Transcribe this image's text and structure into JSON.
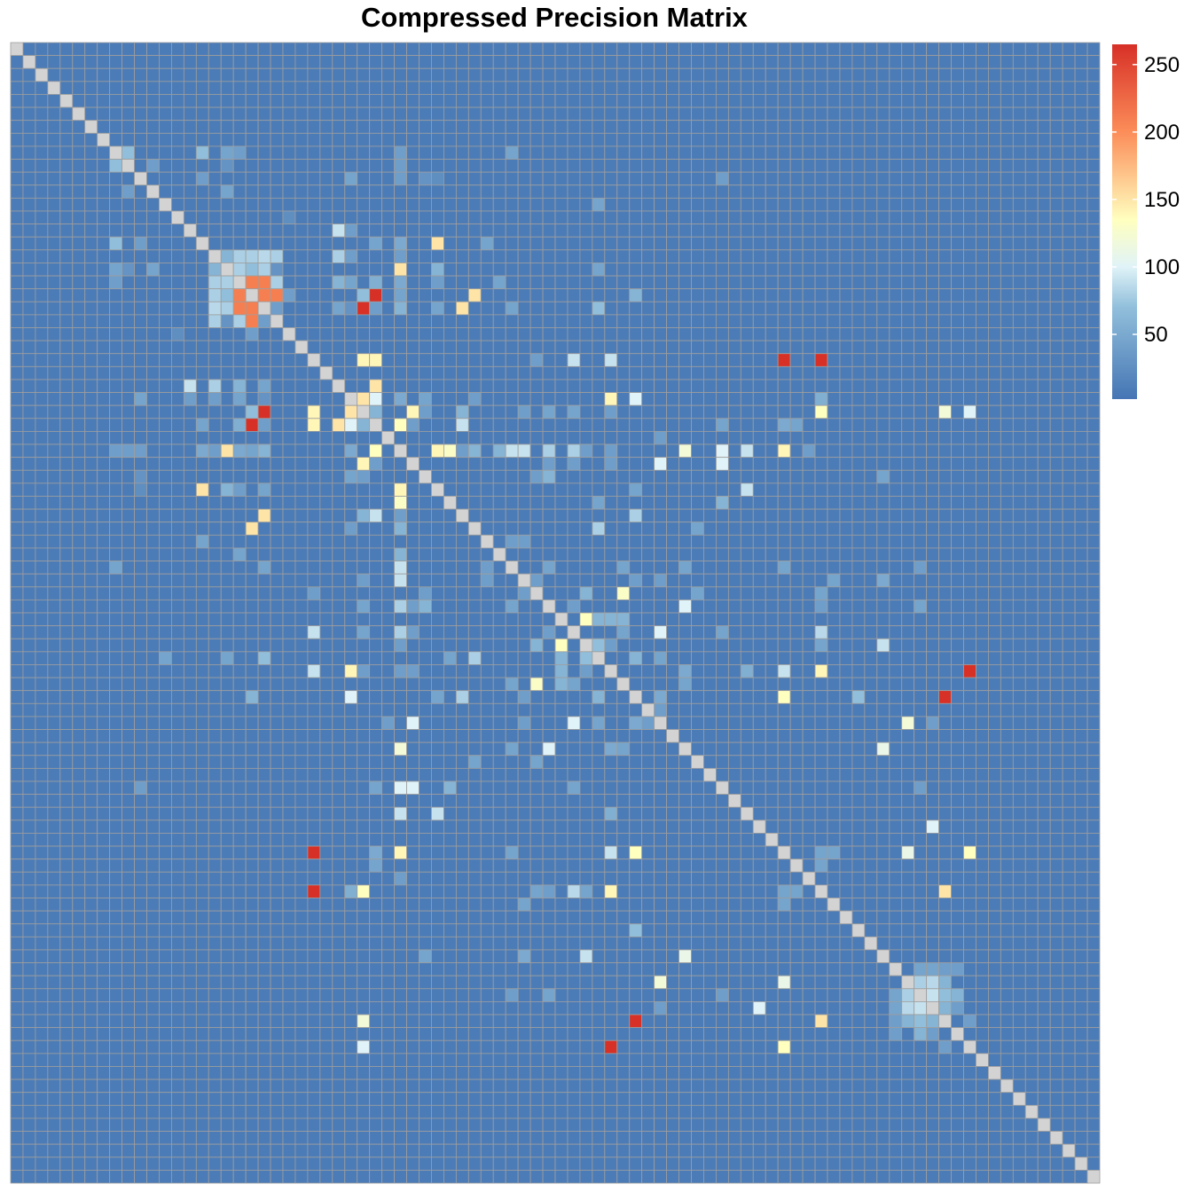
{
  "chart_data": {
    "type": "heatmap",
    "title": "Compressed Precision Matrix",
    "n": 88,
    "diagonal_color": "#D3D3D3",
    "grid_color": "#9E9E9E",
    "colorscale": [
      {
        "v": 2,
        "color": "#4575B4"
      },
      {
        "v": 70,
        "color": "#91BFDB"
      },
      {
        "v": 100,
        "color": "#E0F3F8"
      },
      {
        "v": 135,
        "color": "#FFFFBF"
      },
      {
        "v": 200,
        "color": "#FC8D59"
      },
      {
        "v": 265,
        "color": "#D73027"
      }
    ],
    "scale_range": [
      2,
      265
    ],
    "legend": {
      "ticks": [
        50,
        100,
        150,
        200,
        250
      ],
      "labels": [
        "50",
        "100",
        "150",
        "200",
        "250"
      ]
    },
    "background_value": 8,
    "cells": [
      [
        8,
        9,
        70
      ],
      [
        8,
        17,
        45
      ],
      [
        9,
        11,
        40
      ],
      [
        11,
        17,
        45
      ],
      [
        9,
        17,
        30
      ],
      [
        10,
        33,
        30
      ],
      [
        10,
        34,
        25
      ],
      [
        13,
        22,
        25
      ],
      [
        15,
        8,
        70
      ],
      [
        15,
        10,
        40
      ],
      [
        15,
        29,
        45
      ],
      [
        15,
        31,
        50
      ],
      [
        15,
        34,
        150
      ],
      [
        15,
        38,
        45
      ],
      [
        16,
        17,
        60
      ],
      [
        16,
        18,
        80
      ],
      [
        16,
        19,
        80
      ],
      [
        16,
        20,
        85
      ],
      [
        16,
        21,
        80
      ],
      [
        17,
        17,
        80
      ],
      [
        17,
        18,
        210
      ],
      [
        17,
        19,
        210
      ],
      [
        17,
        20,
        210
      ],
      [
        17,
        21,
        210
      ],
      [
        18,
        17,
        80
      ],
      [
        18,
        18,
        210
      ],
      [
        18,
        19,
        210
      ],
      [
        18,
        20,
        210
      ],
      [
        18,
        21,
        80
      ],
      [
        19,
        17,
        100
      ],
      [
        19,
        18,
        210
      ],
      [
        19,
        19,
        210
      ],
      [
        19,
        20,
        210
      ],
      [
        19,
        21,
        210
      ],
      [
        20,
        17,
        80
      ],
      [
        20,
        18,
        210
      ],
      [
        20,
        19,
        210
      ],
      [
        20,
        20,
        210
      ],
      [
        20,
        21,
        210
      ],
      [
        17,
        19,
        70
      ],
      [
        18,
        8,
        40
      ],
      [
        18,
        29,
        55
      ],
      [
        18,
        31,
        50
      ],
      [
        18,
        34,
        40
      ],
      [
        18,
        39,
        45
      ],
      [
        19,
        22,
        40
      ],
      [
        19,
        28,
        70
      ],
      [
        19,
        29,
        265
      ],
      [
        19,
        31,
        45
      ],
      [
        19,
        37,
        150
      ],
      [
        19,
        50,
        60
      ],
      [
        20,
        27,
        30
      ],
      [
        21,
        17,
        30
      ],
      [
        21,
        20,
        40
      ],
      [
        24,
        29,
        140
      ],
      [
        24,
        48,
        90
      ],
      [
        24,
        65,
        265
      ],
      [
        26,
        14,
        90
      ],
      [
        26,
        16,
        80
      ],
      [
        26,
        18,
        60
      ],
      [
        26,
        20,
        45
      ],
      [
        26,
        29,
        150
      ],
      [
        27,
        10,
        45
      ],
      [
        27,
        14,
        40
      ],
      [
        27,
        16,
        40
      ],
      [
        27,
        18,
        45
      ],
      [
        27,
        28,
        70
      ],
      [
        27,
        29,
        100
      ],
      [
        27,
        31,
        50
      ],
      [
        27,
        33,
        45
      ],
      [
        27,
        37,
        40
      ],
      [
        27,
        50,
        100
      ],
      [
        27,
        65,
        55
      ],
      [
        28,
        20,
        265
      ],
      [
        28,
        24,
        140
      ],
      [
        28,
        27,
        150
      ],
      [
        28,
        28,
        100
      ],
      [
        28,
        29,
        60
      ],
      [
        28,
        32,
        140
      ],
      [
        28,
        33,
        40
      ],
      [
        28,
        36,
        50
      ],
      [
        28,
        41,
        40
      ],
      [
        28,
        45,
        45
      ],
      [
        28,
        48,
        40
      ],
      [
        28,
        65,
        135
      ],
      [
        28,
        77,
        100
      ],
      [
        29,
        20,
        40
      ],
      [
        29,
        29,
        50
      ],
      [
        31,
        8,
        40
      ],
      [
        31,
        9,
        40
      ],
      [
        31,
        10,
        40
      ],
      [
        31,
        16,
        40
      ],
      [
        31,
        17,
        150
      ],
      [
        31,
        20,
        60
      ],
      [
        31,
        29,
        135
      ],
      [
        31,
        35,
        130
      ],
      [
        31,
        37,
        60
      ],
      [
        31,
        40,
        40
      ],
      [
        31,
        41,
        90
      ],
      [
        31,
        45,
        80
      ],
      [
        31,
        46,
        40
      ],
      [
        31,
        54,
        120
      ],
      [
        31,
        59,
        90
      ],
      [
        31,
        64,
        40
      ],
      [
        32,
        29,
        40
      ],
      [
        32,
        45,
        40
      ],
      [
        32,
        48,
        40
      ],
      [
        34,
        17,
        60
      ],
      [
        34,
        20,
        45
      ],
      [
        34,
        31,
        140
      ],
      [
        34,
        50,
        45
      ],
      [
        34,
        59,
        90
      ],
      [
        36,
        20,
        150
      ],
      [
        36,
        28,
        60
      ],
      [
        36,
        29,
        90
      ],
      [
        36,
        31,
        40
      ],
      [
        36,
        50,
        80
      ],
      [
        38,
        40,
        40
      ],
      [
        38,
        41,
        40
      ],
      [
        39,
        31,
        60
      ],
      [
        40,
        8,
        45
      ],
      [
        40,
        20,
        45
      ],
      [
        40,
        31,
        90
      ],
      [
        40,
        54,
        45
      ],
      [
        40,
        62,
        45
      ],
      [
        40,
        73,
        40
      ],
      [
        42,
        24,
        40
      ],
      [
        42,
        33,
        40
      ],
      [
        42,
        41,
        40
      ],
      [
        42,
        46,
        60
      ],
      [
        42,
        49,
        130
      ],
      [
        42,
        55,
        45
      ],
      [
        42,
        65,
        45
      ],
      [
        43,
        28,
        45
      ],
      [
        43,
        31,
        80
      ],
      [
        43,
        32,
        40
      ],
      [
        43,
        33,
        60
      ],
      [
        43,
        40,
        45
      ],
      [
        43,
        45,
        40
      ],
      [
        43,
        54,
        100
      ],
      [
        43,
        65,
        40
      ],
      [
        43,
        73,
        45
      ],
      [
        44,
        47,
        60
      ],
      [
        44,
        48,
        60
      ],
      [
        44,
        49,
        60
      ],
      [
        45,
        24,
        90
      ],
      [
        45,
        28,
        45
      ],
      [
        45,
        49,
        45
      ],
      [
        45,
        65,
        85
      ],
      [
        46,
        44,
        135
      ],
      [
        46,
        46,
        70
      ],
      [
        46,
        47,
        70
      ],
      [
        46,
        48,
        60
      ],
      [
        46,
        65,
        45
      ],
      [
        46,
        70,
        90
      ],
      [
        47,
        12,
        45
      ],
      [
        47,
        17,
        45
      ],
      [
        47,
        20,
        70
      ],
      [
        47,
        35,
        45
      ],
      [
        47,
        37,
        80
      ],
      [
        47,
        50,
        60
      ],
      [
        48,
        27,
        140
      ],
      [
        48,
        31,
        40
      ],
      [
        48,
        46,
        40
      ],
      [
        48,
        54,
        50
      ],
      [
        48,
        59,
        55
      ],
      [
        48,
        65,
        140
      ],
      [
        48,
        77,
        265
      ],
      [
        49,
        40,
        45
      ],
      [
        49,
        54,
        45
      ],
      [
        50,
        41,
        40
      ],
      [
        52,
        30,
        40
      ],
      [
        52,
        32,
        100
      ],
      [
        52,
        41,
        40
      ],
      [
        52,
        45,
        100
      ],
      [
        52,
        47,
        45
      ],
      [
        52,
        50,
        50
      ],
      [
        52,
        51,
        40
      ],
      [
        52,
        72,
        120
      ],
      [
        52,
        74,
        40
      ],
      [
        55,
        37,
        45
      ],
      [
        57,
        10,
        40
      ],
      [
        57,
        29,
        45
      ],
      [
        57,
        31,
        100
      ],
      [
        57,
        32,
        100
      ],
      [
        57,
        35,
        60
      ],
      [
        57,
        45,
        45
      ],
      [
        57,
        73,
        40
      ],
      [
        60,
        74,
        100
      ],
      [
        62,
        24,
        265
      ],
      [
        62,
        29,
        50
      ],
      [
        62,
        31,
        140
      ],
      [
        62,
        48,
        90
      ],
      [
        62,
        50,
        135
      ],
      [
        62,
        65,
        45
      ],
      [
        62,
        66,
        45
      ],
      [
        62,
        77,
        135
      ],
      [
        63,
        29,
        45
      ],
      [
        63,
        65,
        45
      ],
      [
        66,
        41,
        45
      ],
      [
        68,
        50,
        70
      ],
      [
        70,
        33,
        45
      ],
      [
        70,
        41,
        50
      ],
      [
        70,
        54,
        110
      ],
      [
        71,
        73,
        45
      ],
      [
        71,
        74,
        45
      ],
      [
        71,
        75,
        40
      ],
      [
        71,
        76,
        40
      ],
      [
        72,
        62,
        110
      ],
      [
        72,
        72,
        60
      ],
      [
        72,
        73,
        80
      ],
      [
        72,
        74,
        85
      ],
      [
        72,
        75,
        60
      ],
      [
        73,
        73,
        60
      ],
      [
        73,
        74,
        90
      ],
      [
        73,
        75,
        70
      ],
      [
        73,
        76,
        60
      ],
      [
        74,
        74,
        60
      ],
      [
        74,
        75,
        60
      ],
      [
        74,
        76,
        80
      ],
      [
        75,
        28,
        120
      ],
      [
        75,
        50,
        265
      ],
      [
        75,
        65,
        150
      ],
      [
        76,
        74,
        40
      ],
      [
        77,
        75,
        40
      ]
    ]
  }
}
